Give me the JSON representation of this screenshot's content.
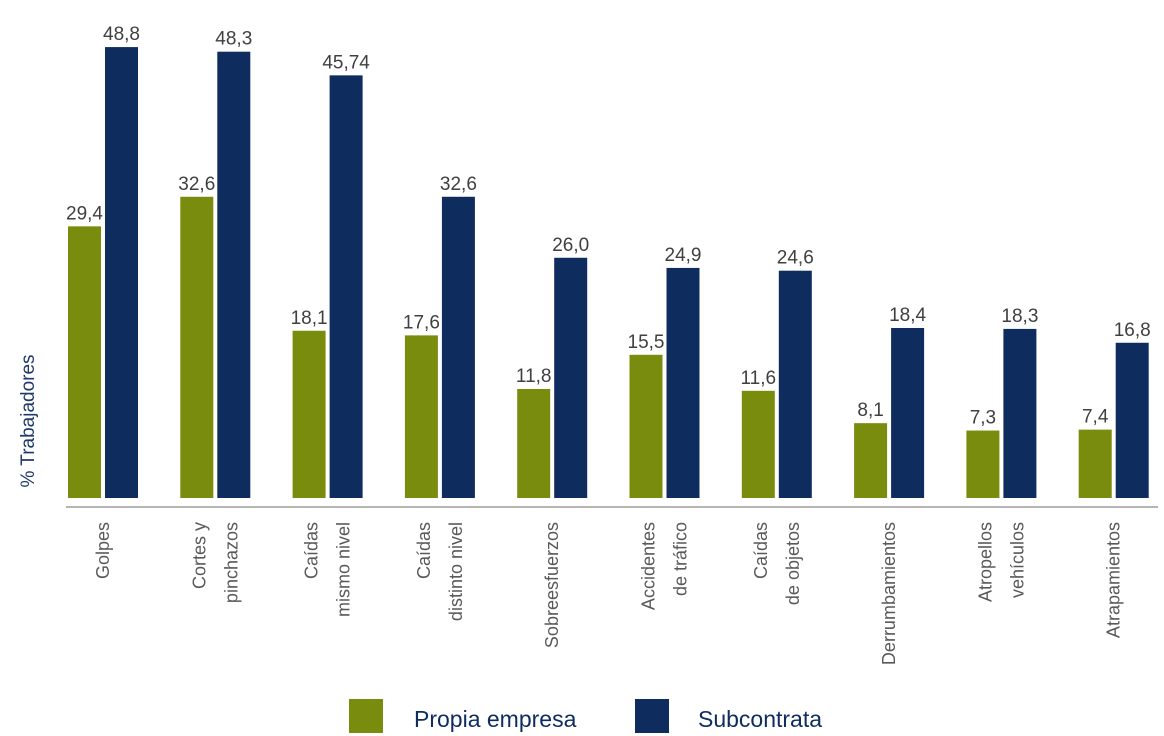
{
  "chart_data": {
    "type": "bar",
    "title": "",
    "xlabel": "",
    "ylabel": "% Trabajadores",
    "ylim": [
      0,
      50
    ],
    "grid": false,
    "legend_position": "bottom",
    "categories": [
      [
        "Golpes"
      ],
      [
        "Cortes y",
        "pinchazos"
      ],
      [
        "Caídas",
        "mismo nivel"
      ],
      [
        "Caídas",
        "distinto nivel"
      ],
      [
        "Sobreesfuerzos"
      ],
      [
        "Accidentes",
        "de tráfico"
      ],
      [
        "Caídas",
        "de objetos"
      ],
      [
        "Derrumbamientos"
      ],
      [
        "Atropellos",
        "vehículos"
      ],
      [
        "Atrapamientos"
      ]
    ],
    "series": [
      {
        "name": "Propia empresa",
        "color": "#7a8c0e",
        "values": [
          29.4,
          32.6,
          18.1,
          17.6,
          11.8,
          15.5,
          11.6,
          8.1,
          7.3,
          7.4
        ],
        "labels": [
          "29,4",
          "32,6",
          "18,1",
          "17,6",
          "11,8",
          "15,5",
          "11,6",
          "8,1",
          "7,3",
          "7,4"
        ]
      },
      {
        "name": "Subcontrata",
        "color": "#0e2c5e",
        "values": [
          48.8,
          48.3,
          45.74,
          32.6,
          26.0,
          24.9,
          24.6,
          18.4,
          18.3,
          16.8
        ],
        "labels": [
          "48,8",
          "48,3",
          "45,74",
          "32,6",
          "26,0",
          "24,9",
          "24,6",
          "18,4",
          "18,3",
          "16,8"
        ]
      }
    ]
  }
}
